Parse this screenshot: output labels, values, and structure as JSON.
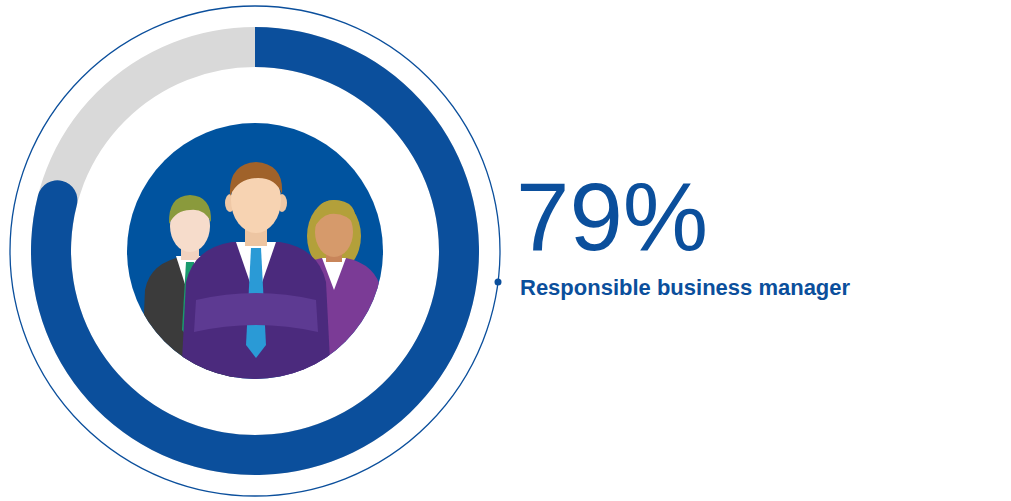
{
  "chart_data": {
    "type": "donut",
    "categories": [
      "Responsible business manager"
    ],
    "values": [
      79
    ],
    "value_labels": [
      "79%"
    ],
    "ylim": [
      0,
      100
    ],
    "color": "#0b4f9c",
    "data_labels": true
  }
}
